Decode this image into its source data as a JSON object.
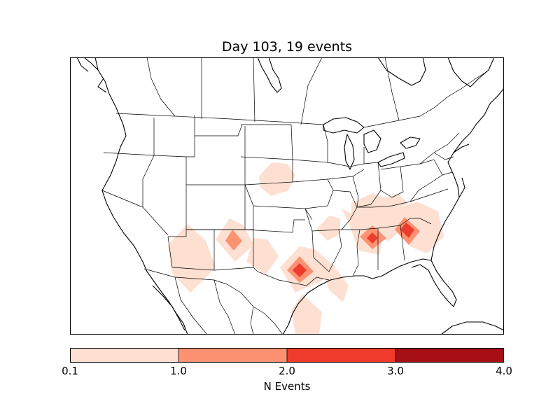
{
  "title": "Day 103, 19 events",
  "colorbar": {
    "label": "N Events",
    "ticks": [
      "0.1",
      "1.0",
      "2.0",
      "3.0",
      "4.0"
    ],
    "levels": [
      {
        "from": "0.1",
        "to": "1.0",
        "color": "#fee0d2"
      },
      {
        "from": "1.0",
        "to": "2.0",
        "color": "#fc9272"
      },
      {
        "from": "2.0",
        "to": "3.0",
        "color": "#ef3b2c"
      },
      {
        "from": "3.0",
        "to": "4.0",
        "color": "#a50f15"
      }
    ]
  },
  "colors": {
    "level1": "#fee0d2",
    "level2": "#fc9272",
    "level3": "#ef3b2c",
    "level4": "#a50f15",
    "coastline": "#000000"
  }
}
